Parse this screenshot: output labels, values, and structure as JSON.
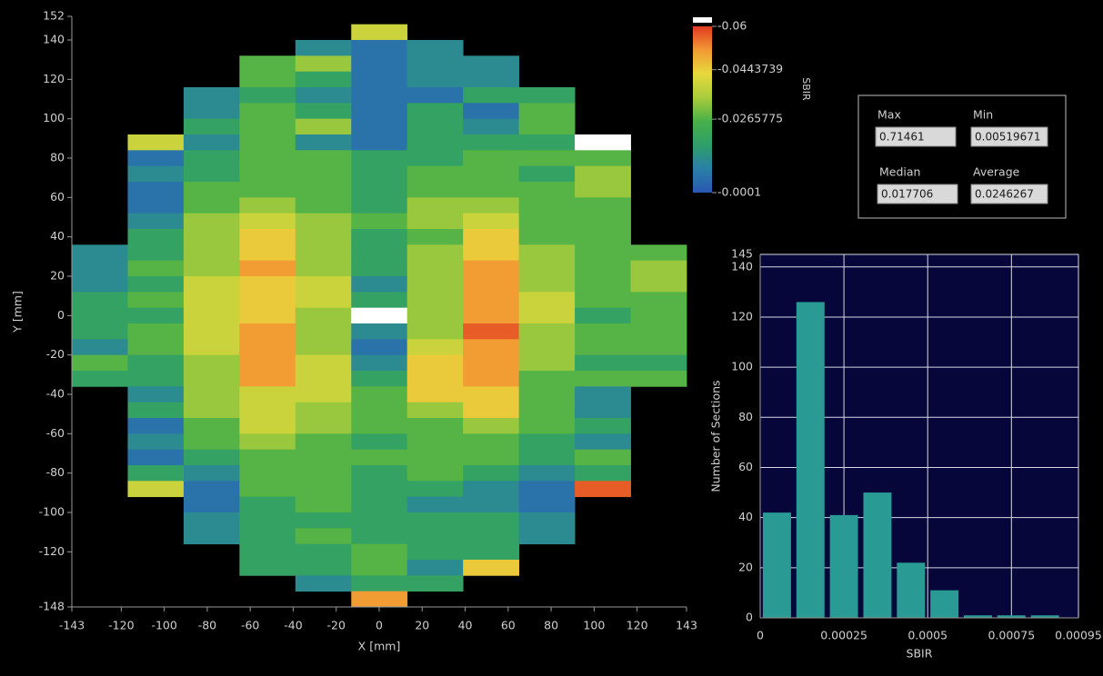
{
  "chart_data": [
    {
      "type": "heatmap",
      "xlabel": "X [mm]",
      "ylabel": "Y [mm]",
      "xlim": [
        -143,
        143
      ],
      "ylim": [
        -148,
        152
      ],
      "xticks": [
        -143,
        -120,
        -100,
        -80,
        -60,
        -40,
        -20,
        0,
        20,
        40,
        60,
        80,
        100,
        120,
        143
      ],
      "yticks": [
        152,
        140,
        120,
        100,
        80,
        60,
        40,
        20,
        0,
        -20,
        -40,
        -60,
        -80,
        -100,
        -120,
        -148
      ],
      "x_bins": [
        -143,
        -117,
        -91,
        -65,
        -39,
        -13,
        13,
        39,
        65,
        91,
        117,
        143
      ],
      "y_bins": [
        148,
        140,
        132,
        124,
        116,
        108,
        100,
        92,
        84,
        76,
        68,
        60,
        52,
        44,
        36,
        28,
        20,
        12,
        4,
        -4,
        -12,
        -20,
        -28,
        -36,
        -44,
        -52,
        -60,
        -68,
        -76,
        -84,
        -92,
        -100,
        -108,
        -116,
        -124,
        -132,
        -140,
        -148
      ],
      "z": [
        [
          null,
          null,
          null,
          null,
          null,
          -0.039,
          null,
          null,
          null,
          null,
          null
        ],
        [
          null,
          null,
          null,
          null,
          -0.012,
          -0.006,
          -0.012,
          null,
          null,
          null,
          null
        ],
        [
          null,
          null,
          null,
          -0.027,
          -0.033,
          -0.006,
          -0.012,
          -0.012,
          null,
          null,
          null
        ],
        [
          null,
          null,
          null,
          -0.027,
          -0.019,
          -0.006,
          -0.012,
          -0.012,
          null,
          null,
          null
        ],
        [
          null,
          null,
          -0.012,
          -0.019,
          -0.012,
          -0.006,
          -0.006,
          -0.019,
          -0.019,
          null,
          null
        ],
        [
          null,
          null,
          -0.012,
          -0.027,
          -0.019,
          -0.006,
          -0.019,
          -0.006,
          -0.027,
          null,
          null
        ],
        [
          null,
          null,
          -0.019,
          -0.027,
          -0.033,
          -0.006,
          -0.019,
          -0.012,
          -0.027,
          null,
          null
        ],
        [
          null,
          -0.039,
          -0.012,
          -0.027,
          -0.012,
          -0.006,
          -0.019,
          -0.019,
          -0.019,
          -0.065,
          null
        ],
        [
          null,
          -0.006,
          -0.019,
          -0.027,
          -0.027,
          -0.019,
          -0.019,
          -0.027,
          -0.027,
          -0.027,
          null
        ],
        [
          null,
          -0.012,
          -0.019,
          -0.027,
          -0.027,
          -0.019,
          -0.027,
          -0.027,
          -0.019,
          -0.033,
          null
        ],
        [
          null,
          -0.006,
          -0.027,
          -0.027,
          -0.027,
          -0.019,
          -0.027,
          -0.027,
          -0.027,
          -0.033,
          null
        ],
        [
          null,
          -0.006,
          -0.027,
          -0.033,
          -0.027,
          -0.019,
          -0.033,
          -0.033,
          -0.027,
          -0.027,
          null
        ],
        [
          null,
          -0.012,
          -0.033,
          -0.039,
          -0.033,
          -0.027,
          -0.033,
          -0.039,
          -0.027,
          -0.027,
          null
        ],
        [
          null,
          -0.019,
          -0.033,
          -0.045,
          -0.033,
          -0.019,
          -0.027,
          -0.045,
          -0.027,
          -0.027,
          null
        ],
        [
          -0.012,
          -0.019,
          -0.033,
          -0.045,
          -0.033,
          -0.019,
          -0.033,
          -0.045,
          -0.033,
          -0.027,
          -0.027
        ],
        [
          -0.012,
          -0.027,
          -0.033,
          -0.051,
          -0.033,
          -0.019,
          -0.033,
          -0.051,
          -0.033,
          -0.027,
          -0.033
        ],
        [
          -0.012,
          -0.019,
          -0.039,
          -0.045,
          -0.039,
          -0.012,
          -0.033,
          -0.051,
          -0.033,
          -0.027,
          -0.033
        ],
        [
          -0.019,
          -0.027,
          -0.039,
          -0.045,
          -0.039,
          -0.019,
          -0.033,
          -0.051,
          -0.039,
          -0.027,
          -0.027
        ],
        [
          -0.019,
          -0.019,
          -0.039,
          -0.045,
          -0.033,
          -0.065,
          -0.033,
          -0.051,
          -0.039,
          -0.019,
          -0.027
        ],
        [
          -0.019,
          -0.027,
          -0.039,
          -0.051,
          -0.033,
          -0.012,
          -0.033,
          -0.057,
          -0.033,
          -0.027,
          -0.027
        ],
        [
          -0.012,
          -0.027,
          -0.039,
          -0.051,
          -0.033,
          -0.006,
          -0.039,
          -0.051,
          -0.033,
          -0.027,
          -0.027
        ],
        [
          -0.027,
          -0.019,
          -0.033,
          -0.051,
          -0.039,
          -0.012,
          -0.045,
          -0.051,
          -0.033,
          -0.019,
          -0.019
        ],
        [
          -0.019,
          -0.019,
          -0.033,
          -0.051,
          -0.039,
          -0.019,
          -0.045,
          -0.051,
          -0.027,
          -0.027,
          -0.027
        ],
        [
          null,
          -0.012,
          -0.033,
          -0.039,
          -0.039,
          -0.027,
          -0.045,
          -0.045,
          -0.027,
          -0.012,
          null
        ],
        [
          null,
          -0.019,
          -0.033,
          -0.039,
          -0.033,
          -0.027,
          -0.033,
          -0.045,
          -0.027,
          -0.012,
          null
        ],
        [
          null,
          -0.006,
          -0.027,
          -0.039,
          -0.033,
          -0.027,
          -0.027,
          -0.033,
          -0.027,
          -0.019,
          null
        ],
        [
          null,
          -0.012,
          -0.027,
          -0.033,
          -0.027,
          -0.019,
          -0.027,
          -0.027,
          -0.019,
          -0.012,
          null
        ],
        [
          null,
          -0.006,
          -0.019,
          -0.027,
          -0.027,
          -0.027,
          -0.027,
          -0.027,
          -0.019,
          -0.027,
          null
        ],
        [
          null,
          -0.019,
          -0.012,
          -0.027,
          -0.027,
          -0.019,
          -0.027,
          -0.019,
          -0.012,
          -0.019,
          null
        ],
        [
          null,
          -0.039,
          -0.006,
          -0.027,
          -0.027,
          -0.019,
          -0.019,
          -0.012,
          -0.006,
          -0.057,
          null
        ],
        [
          null,
          null,
          -0.006,
          -0.019,
          -0.027,
          -0.019,
          -0.012,
          -0.012,
          -0.006,
          null,
          null
        ],
        [
          null,
          null,
          -0.012,
          -0.019,
          -0.019,
          -0.019,
          -0.019,
          -0.019,
          -0.012,
          null,
          null
        ],
        [
          null,
          null,
          -0.012,
          -0.019,
          -0.027,
          -0.019,
          -0.019,
          -0.019,
          -0.012,
          null,
          null
        ],
        [
          null,
          null,
          null,
          -0.019,
          -0.019,
          -0.027,
          -0.019,
          -0.019,
          null,
          null,
          null
        ],
        [
          null,
          null,
          null,
          -0.019,
          -0.019,
          -0.027,
          -0.012,
          -0.045,
          null,
          null,
          null
        ],
        [
          null,
          null,
          null,
          null,
          -0.012,
          -0.019,
          -0.019,
          null,
          null,
          null,
          null
        ],
        [
          null,
          null,
          null,
          null,
          null,
          -0.051,
          null,
          null,
          null,
          null,
          null
        ]
      ],
      "colorbar": {
        "label": "SBIR",
        "lim": [
          -0.0001,
          -0.06
        ],
        "ticks": [
          -0.06,
          -0.0443739,
          -0.0265775,
          -0.0001
        ],
        "colormap": [
          "#2a58b0",
          "#2a7fa8",
          "#2f9e6a",
          "#48b048",
          "#a8cc3c",
          "#e8d83c",
          "#f29a34",
          "#e23a22"
        ],
        "over_color": "#ffffff"
      }
    },
    {
      "type": "histogram",
      "xlabel": "SBIR",
      "ylabel": "Number of Sections",
      "bins": [
        0,
        0.0001,
        0.0002,
        0.0003,
        0.0004,
        0.0005,
        0.0006,
        0.0007,
        0.0008,
        0.0009
      ],
      "counts": [
        42,
        126,
        41,
        50,
        22,
        11,
        1,
        1,
        1
      ],
      "color": "#2a9a94",
      "background": "#06063a",
      "xlim": [
        0,
        0.00095
      ],
      "ylim": [
        0,
        145
      ],
      "xticks": [
        0,
        0.00025,
        0.0005,
        0.00075,
        0.00095
      ],
      "yticks": [
        0,
        20,
        40,
        60,
        80,
        100,
        120,
        140,
        145
      ],
      "grid": true
    }
  ],
  "stats": [
    {
      "label": "Max",
      "value": 0.71461
    },
    {
      "label": "Min",
      "value": 0.00519671
    },
    {
      "label": "Median",
      "value": 0.017706
    },
    {
      "label": "Average",
      "value": 0.0246267
    }
  ]
}
